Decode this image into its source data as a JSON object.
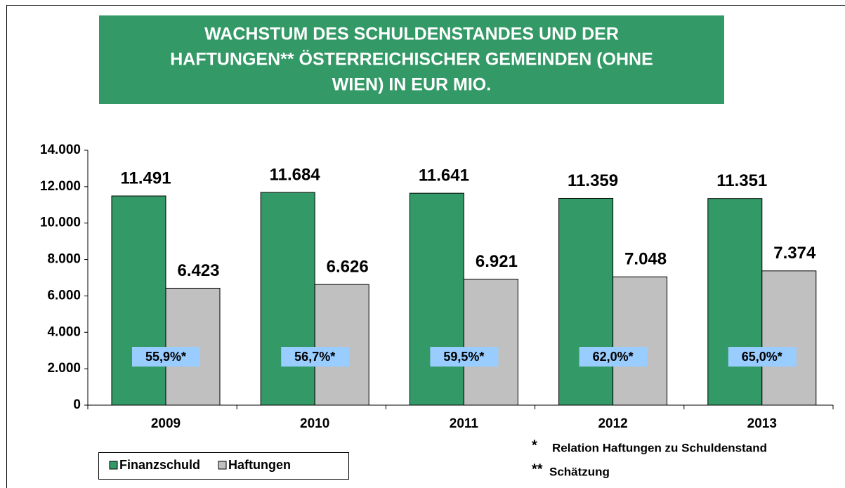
{
  "chart_data": {
    "type": "bar",
    "title": [
      "WACHSTUM DES SCHULDENSTANDES UND DER",
      "HAFTUNGEN** ÖSTERREICHISCHER GEMEINDEN (OHNE",
      "WIEN) IN EUR MIO."
    ],
    "categories": [
      "2009",
      "2010",
      "2011",
      "2012",
      "2013"
    ],
    "series": [
      {
        "name": "Finanzschuld",
        "color": "#339966",
        "values": [
          11491,
          11684,
          11641,
          11359,
          11351
        ],
        "value_labels": [
          "11.491",
          "11.684",
          "11.641",
          "11.359",
          "11.351"
        ]
      },
      {
        "name": "Haftungen",
        "color": "#c0c0c0",
        "values": [
          6423,
          6626,
          6921,
          7048,
          7374
        ],
        "value_labels": [
          "6.423",
          "6.626",
          "6.921",
          "7.048",
          "7.374"
        ]
      }
    ],
    "annotations": [
      "55,9%*",
      "56,7%*",
      "59,5%*",
      "62,0%*",
      "65,0%*"
    ],
    "ylim": [
      0,
      14000
    ],
    "yticks": [
      0,
      {
        "value": 2000,
        "label": "2.000"
      },
      {
        "value": 4000,
        "label": "4.000"
      },
      {
        "value": 6000,
        "label": "6.000"
      },
      {
        "value": 8000,
        "label": "8.000"
      },
      {
        "value": 10000,
        "label": "10.000"
      },
      {
        "value": 12000,
        "label": "12.000"
      },
      {
        "value": 14000,
        "label": "14.000"
      }
    ],
    "footnotes": [
      {
        "mark": "*",
        "text": "Relation Haftungen zu Schuldenstand"
      },
      {
        "mark": "**",
        "text": "Schätzung"
      }
    ]
  }
}
